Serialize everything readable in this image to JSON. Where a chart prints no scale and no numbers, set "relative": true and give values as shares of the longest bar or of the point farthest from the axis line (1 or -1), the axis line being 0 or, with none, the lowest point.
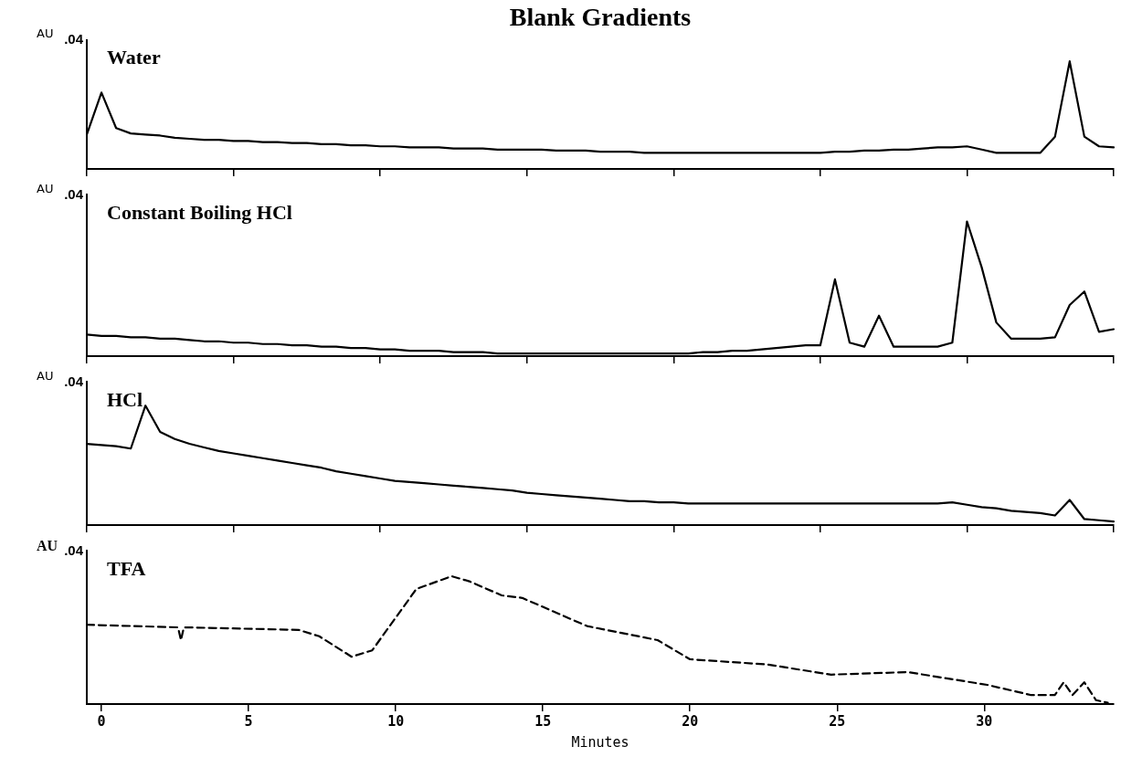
{
  "chart_data": [
    {
      "type": "line",
      "title": "Blank Gradients",
      "ylabel": "AU",
      "relative": true,
      "tick_labels": false,
      "annotations": [
        ".04"
      ],
      "categories": [
        null,
        null,
        null,
        null,
        null,
        null,
        null,
        null,
        null,
        null,
        null,
        null,
        null,
        null,
        null,
        null,
        null,
        null,
        null,
        null,
        null,
        null,
        null,
        null,
        null,
        null,
        null,
        null,
        null,
        null,
        null,
        null,
        null,
        null,
        null,
        null,
        null,
        null,
        null,
        null,
        null,
        null,
        null,
        null,
        null,
        null,
        null,
        null,
        null,
        null,
        null,
        null,
        null,
        null,
        null,
        null,
        null,
        null,
        null,
        null,
        null,
        null,
        null,
        null,
        null,
        null,
        null,
        null,
        null,
        null,
        null
      ],
      "series": [
        {
          "name": "Water",
          "color": "#000000",
          "values": [
            0.32,
            0.71,
            0.38,
            0.33,
            0.32,
            0.31,
            0.29,
            0.28,
            0.27,
            0.27,
            0.26,
            0.26,
            0.25,
            0.25,
            0.24,
            0.24,
            0.23,
            0.23,
            0.22,
            0.22,
            0.21,
            0.21,
            0.2,
            0.2,
            0.2,
            0.19,
            0.19,
            0.19,
            0.18,
            0.18,
            0.18,
            0.18,
            0.17,
            0.17,
            0.17,
            0.16,
            0.16,
            0.16,
            0.15,
            0.15,
            0.15,
            0.15,
            0.15,
            0.15,
            0.15,
            0.15,
            0.15,
            0.15,
            0.15,
            0.15,
            0.15,
            0.16,
            0.16,
            0.17,
            0.17,
            0.18,
            0.18,
            0.19,
            0.2,
            0.2,
            0.21,
            0.18,
            0.15,
            0.15,
            0.15,
            0.15,
            0.3,
            1,
            0.3,
            0.21,
            0.2
          ]
        }
      ]
    },
    {
      "type": "line",
      "ylabel": "AU",
      "relative": true,
      "tick_labels": false,
      "annotations": [
        ".04"
      ],
      "categories": [
        null,
        null,
        null,
        null,
        null,
        null,
        null,
        null,
        null,
        null,
        null,
        null,
        null,
        null,
        null,
        null,
        null,
        null,
        null,
        null,
        null,
        null,
        null,
        null,
        null,
        null,
        null,
        null,
        null,
        null,
        null,
        null,
        null,
        null,
        null,
        null,
        null,
        null,
        null,
        null,
        null,
        null,
        null,
        null,
        null,
        null,
        null,
        null,
        null,
        null,
        null,
        null,
        null,
        null,
        null,
        null,
        null,
        null,
        null,
        null,
        null,
        null,
        null,
        null,
        null,
        null,
        null,
        null,
        null,
        null,
        null
      ],
      "series": [
        {
          "name": "Constant Boiling HCl",
          "color": "#000000",
          "values": [
            0.16,
            0.15,
            0.15,
            0.14,
            0.14,
            0.13,
            0.13,
            0.12,
            0.11,
            0.11,
            0.1,
            0.1,
            0.09,
            0.09,
            0.08,
            0.08,
            0.07,
            0.07,
            0.06,
            0.06,
            0.05,
            0.05,
            0.04,
            0.04,
            0.04,
            0.03,
            0.03,
            0.03,
            0.02,
            0.02,
            0.02,
            0.02,
            0.02,
            0.02,
            0.02,
            0.02,
            0.02,
            0.02,
            0.02,
            0.02,
            0.02,
            0.02,
            0.03,
            0.03,
            0.04,
            0.04,
            0.05,
            0.06,
            0.07,
            0.08,
            0.08,
            0.57,
            0.1,
            0.07,
            0.3,
            0.07,
            0.07,
            0.07,
            0.07,
            0.1,
            1,
            0.66,
            0.25,
            0.13,
            0.13,
            0.13,
            0.14,
            0.38,
            0.48,
            0.18,
            0.2
          ]
        }
      ]
    },
    {
      "type": "line",
      "ylabel": "AU",
      "relative": true,
      "tick_labels": false,
      "annotations": [
        ".04"
      ],
      "categories": [
        null,
        null,
        null,
        null,
        null,
        null,
        null,
        null,
        null,
        null,
        null,
        null,
        null,
        null,
        null,
        null,
        null,
        null,
        null,
        null,
        null,
        null,
        null,
        null,
        null,
        null,
        null,
        null,
        null,
        null,
        null,
        null,
        null,
        null,
        null,
        null,
        null,
        null,
        null,
        null,
        null,
        null,
        null,
        null,
        null,
        null,
        null,
        null,
        null,
        null,
        null,
        null,
        null,
        null,
        null,
        null,
        null,
        null,
        null,
        null,
        null,
        null,
        null,
        null,
        null,
        null,
        null,
        null,
        null,
        null,
        null
      ],
      "series": [
        {
          "name": "HCl",
          "color": "#000000",
          "values": [
            0.68,
            0.67,
            0.66,
            0.64,
            1,
            0.78,
            0.72,
            0.68,
            0.65,
            0.62,
            0.6,
            0.58,
            0.56,
            0.54,
            0.52,
            0.5,
            0.48,
            0.45,
            0.43,
            0.41,
            0.39,
            0.37,
            0.36,
            0.35,
            0.34,
            0.33,
            0.32,
            0.31,
            0.3,
            0.29,
            0.27,
            0.26,
            0.25,
            0.24,
            0.23,
            0.22,
            0.21,
            0.2,
            0.2,
            0.19,
            0.19,
            0.18,
            0.18,
            0.18,
            0.18,
            0.18,
            0.18,
            0.18,
            0.18,
            0.18,
            0.18,
            0.18,
            0.18,
            0.18,
            0.18,
            0.18,
            0.18,
            0.18,
            0.18,
            0.19,
            0.17,
            0.15,
            0.14,
            0.12,
            0.11,
            0.1,
            0.08,
            0.21,
            0.05,
            0.04,
            0.03
          ]
        }
      ]
    },
    {
      "type": "line",
      "xlabel": "Minutes",
      "ylabel": "AU",
      "relative": true,
      "tick_labels": "x",
      "annotations": [
        ".04"
      ],
      "line_style": "dashed",
      "xlim": [
        -0.5,
        34.4
      ],
      "xticks": [
        0,
        5,
        10,
        15,
        20,
        25,
        30
      ],
      "x": [
        -0.5,
        2.6,
        2.7,
        2.8,
        6.7,
        7.4,
        8.5,
        9.2,
        10.7,
        11.9,
        12.5,
        13.6,
        14.3,
        16.5,
        18.9,
        20.0,
        22.6,
        24.8,
        27.4,
        30.1,
        31.6,
        32.4,
        32.7,
        33.0,
        33.4,
        33.8,
        34.2
      ],
      "series": [
        {
          "name": "TFA",
          "color": "#000000",
          "values": [
            0.62,
            0.6,
            0.5,
            0.6,
            0.58,
            0.53,
            0.37,
            0.42,
            0.9,
            1,
            0.96,
            0.85,
            0.83,
            0.61,
            0.5,
            0.35,
            0.31,
            0.23,
            0.25,
            0.15,
            0.07,
            0.07,
            0.17,
            0.07,
            0.17,
            0.03,
            0.01
          ]
        }
      ]
    }
  ]
}
